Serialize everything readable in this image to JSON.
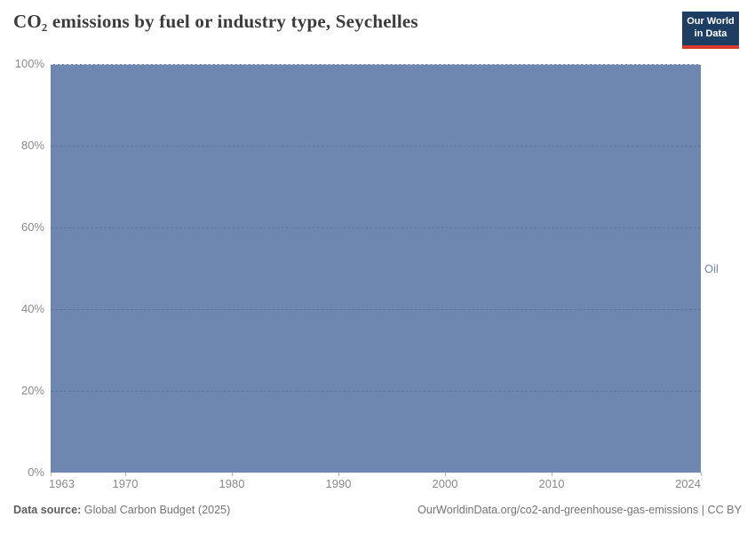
{
  "header": {
    "title": "CO₂ emissions by fuel or industry type, Seychelles",
    "logo": {
      "line1": "Our World",
      "line2": "in Data"
    }
  },
  "chart_data": {
    "type": "area",
    "stacking": "percent",
    "title": "CO₂ emissions by fuel or industry type, Seychelles",
    "xlabel": "",
    "ylabel": "",
    "x": {
      "min": 1963,
      "max": 2024,
      "ticks": [
        1963,
        1970,
        1980,
        1990,
        2000,
        2010,
        2024
      ]
    },
    "y": {
      "min": 0,
      "max": 100,
      "tick_values": [
        0,
        20,
        40,
        60,
        80,
        100
      ],
      "tick_labels": [
        "0%",
        "20%",
        "40%",
        "60%",
        "80%",
        "100%"
      ]
    },
    "grid": "dashed-horizontal",
    "legend_position": "series-label-right-of-plot",
    "series": [
      {
        "name": "Oil",
        "color": "#6d87b0",
        "x_range": [
          1963,
          2024
        ],
        "share_percent": 100,
        "description": "Oil accounts for 100% of CO₂ emissions in every year shown (full plot area filled)"
      }
    ]
  },
  "footer": {
    "source_label": "Data source:",
    "source_value": "Global Carbon Budget (2025)",
    "credit": "OurWorldinData.org/co2-and-greenhouse-gas-emissions | CC BY"
  },
  "colors": {
    "area": "#6d87b0",
    "series_label": "#6d87b0",
    "logo_bg": "#1d3d63",
    "logo_red": "#d93a2b",
    "title_text": "#3b3b3b",
    "axis_text": "#8b8b8b",
    "footer_text": "#757575"
  }
}
